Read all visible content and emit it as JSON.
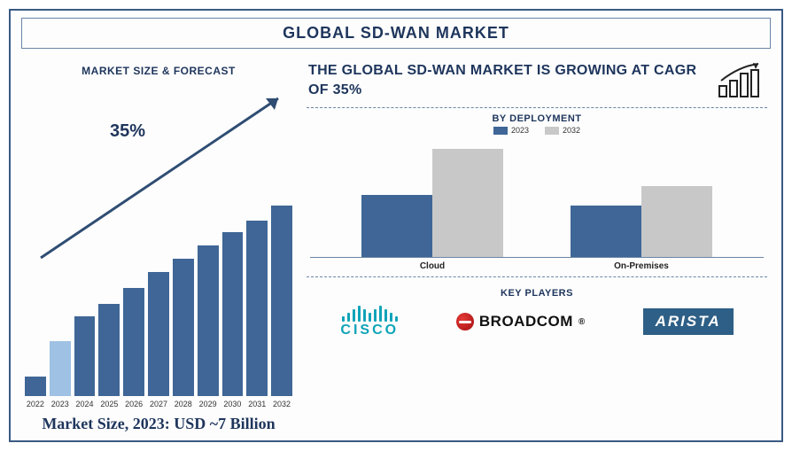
{
  "title": "GLOBAL SD-WAN MARKET",
  "left": {
    "section_title": "MARKET SIZE & FORECAST",
    "growth_label": "35%",
    "market_size_text": "Market Size, 2023: USD ~7 Billion",
    "forecast_chart": {
      "type": "bar",
      "years": [
        "2022",
        "2023",
        "2024",
        "2025",
        "2026",
        "2027",
        "2028",
        "2029",
        "2030",
        "2031",
        "2032"
      ],
      "values": [
        22,
        62,
        90,
        104,
        122,
        140,
        155,
        170,
        185,
        198,
        215
      ],
      "bar_colors": [
        "#3f6696",
        "#9fc1e3",
        "#3f6696",
        "#3f6696",
        "#3f6696",
        "#3f6696",
        "#3f6696",
        "#3f6696",
        "#3f6696",
        "#3f6696",
        "#3f6696"
      ],
      "max_bar_height": 215,
      "label_fontsize": 9,
      "label_color": "#333333",
      "arrow_color": "#2f4d73"
    }
  },
  "right": {
    "headline": "THE GLOBAL SD-WAN MARKET IS GROWING AT CAGR OF 35%",
    "deployment": {
      "title": "BY DEPLOYMENT",
      "legend": [
        {
          "label": "2023",
          "color": "#3f6696"
        },
        {
          "label": "2032",
          "color": "#c8c8c8"
        }
      ],
      "categories": [
        "Cloud",
        "On-Premises"
      ],
      "series_2023": [
        70,
        58
      ],
      "series_2032": [
        122,
        80
      ],
      "max_height": 130,
      "axis_color": "#6b85a5"
    },
    "key_players": {
      "title": "KEY PLAYERS",
      "logos": [
        {
          "name": "cisco",
          "text": "CISCO",
          "color": "#0fa3b8"
        },
        {
          "name": "broadcom",
          "text": "BROADCOM",
          "color": "#111111"
        },
        {
          "name": "arista",
          "text": "ARISTA",
          "bg": "#2e5f86",
          "color": "#ffffff"
        }
      ]
    },
    "growth_icon_color": "#222222"
  },
  "colors": {
    "frame": "#3a5a85",
    "text_primary": "#1e355c",
    "dash": "#6b85a5"
  }
}
